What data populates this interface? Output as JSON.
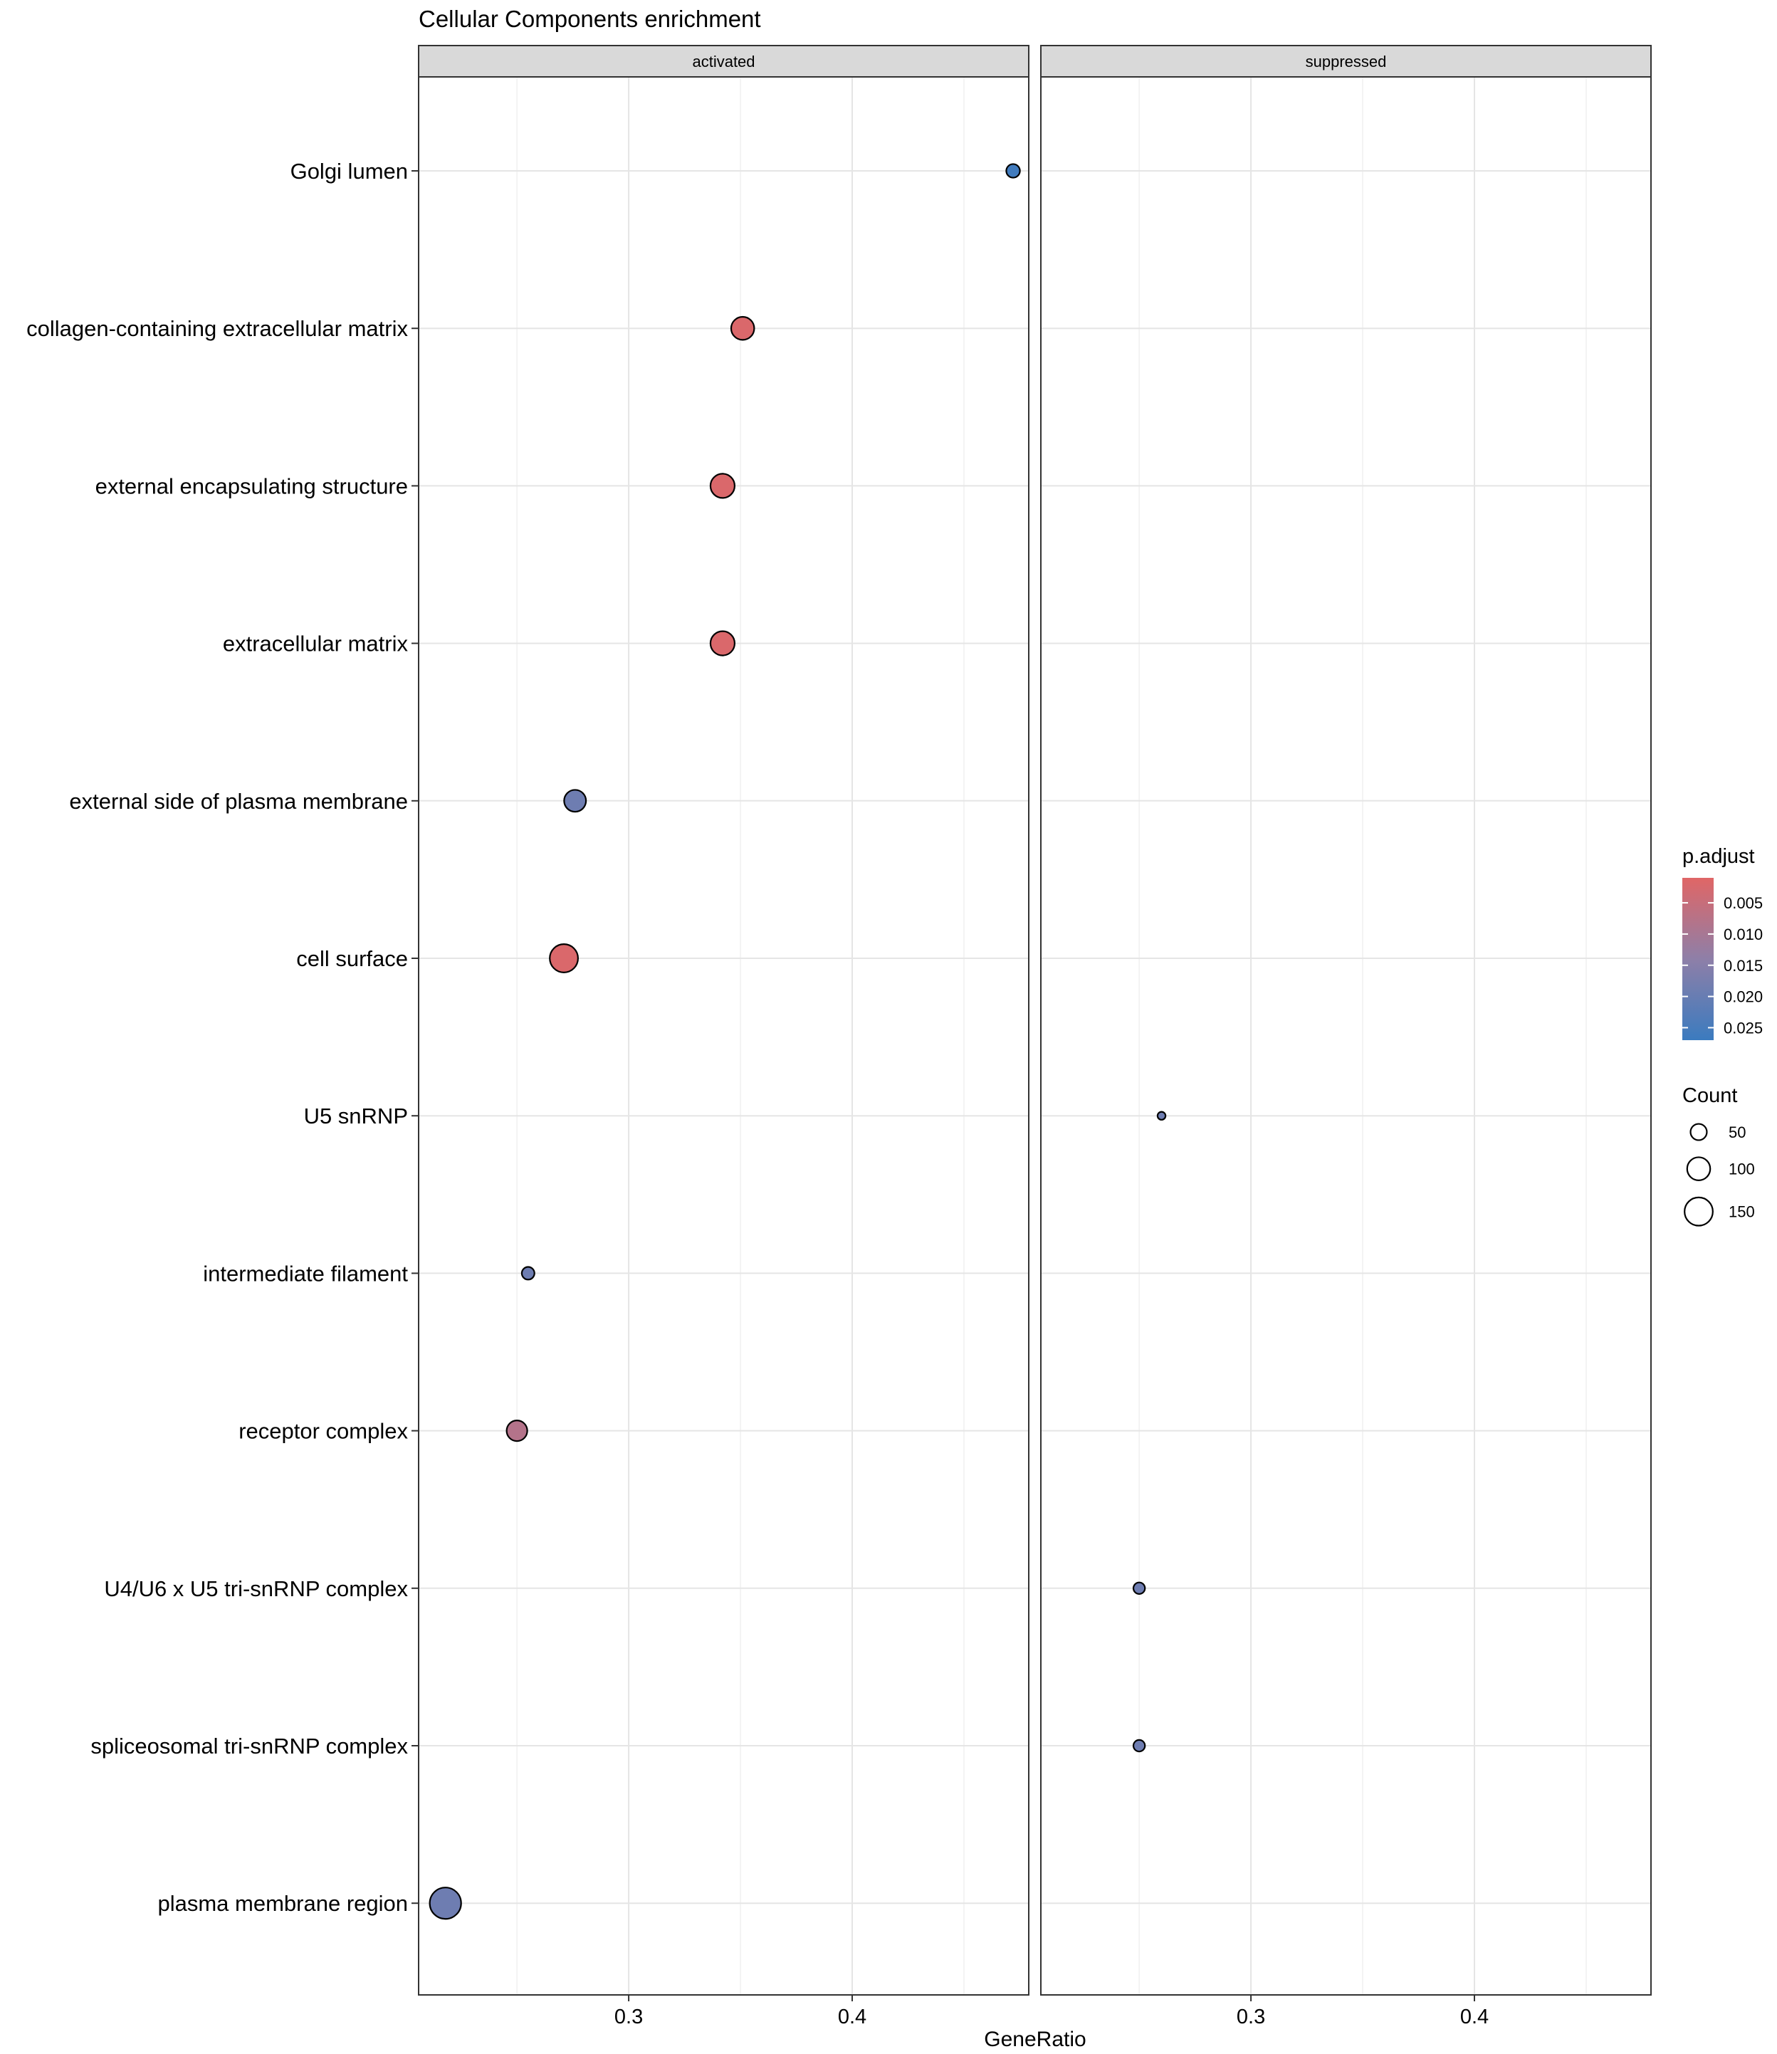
{
  "chart_data": {
    "type": "scatter",
    "title": "Cellular Components enrichment",
    "xlabel": "GeneRatio",
    "ylabel": "",
    "xlim": [
      0.206,
      0.479
    ],
    "x_ticks": [
      0.3,
      0.4
    ],
    "x_tick_labels": [
      "0.3",
      "0.4"
    ],
    "x_minor_ticks": [
      0.25,
      0.35,
      0.45
    ],
    "grid": true,
    "facets": [
      "activated",
      "suppressed"
    ],
    "categories": [
      "Golgi lumen",
      "collagen-containing extracellular matrix",
      "external encapsulating structure",
      "extracellular matrix",
      "external side of plasma membrane",
      "cell surface",
      "U5 snRNP",
      "intermediate filament",
      "receptor complex",
      "U4/U6 x U5 tri-snRNP complex",
      "spliceosomal tri-snRNP complex",
      "plasma membrane region"
    ],
    "points": [
      {
        "facet": "activated",
        "category": "Golgi lumen",
        "gene_ratio": 0.472,
        "count": 35,
        "p_adjust": 0.026
      },
      {
        "facet": "activated",
        "category": "collagen-containing extracellular matrix",
        "gene_ratio": 0.351,
        "count": 100,
        "p_adjust": 0.002
      },
      {
        "facet": "activated",
        "category": "external encapsulating structure",
        "gene_ratio": 0.342,
        "count": 110,
        "p_adjust": 0.002
      },
      {
        "facet": "activated",
        "category": "extracellular matrix",
        "gene_ratio": 0.342,
        "count": 110,
        "p_adjust": 0.002
      },
      {
        "facet": "activated",
        "category": "external side of plasma membrane",
        "gene_ratio": 0.276,
        "count": 90,
        "p_adjust": 0.019
      },
      {
        "facet": "activated",
        "category": "cell surface",
        "gene_ratio": 0.271,
        "count": 150,
        "p_adjust": 0.002
      },
      {
        "facet": "suppressed",
        "category": "U5 snRNP",
        "gene_ratio": 0.26,
        "count": 12,
        "p_adjust": 0.019
      },
      {
        "facet": "activated",
        "category": "intermediate filament",
        "gene_ratio": 0.255,
        "count": 30,
        "p_adjust": 0.019
      },
      {
        "facet": "activated",
        "category": "receptor complex",
        "gene_ratio": 0.25,
        "count": 80,
        "p_adjust": 0.008
      },
      {
        "facet": "suppressed",
        "category": "U4/U6 x U5 tri-snRNP complex",
        "gene_ratio": 0.25,
        "count": 25,
        "p_adjust": 0.019
      },
      {
        "facet": "suppressed",
        "category": "spliceosomal tri-snRNP complex",
        "gene_ratio": 0.25,
        "count": 25,
        "p_adjust": 0.019
      },
      {
        "facet": "activated",
        "category": "plasma membrane region",
        "gene_ratio": 0.218,
        "count": 185,
        "p_adjust": 0.019
      }
    ],
    "color_legend": {
      "title": "p.adjust",
      "range": [
        0.001,
        0.027
      ],
      "low_color": "#E06666",
      "mid_color": "#8E7FA8",
      "high_color": "#3B7BBF",
      "ticks": [
        0.005,
        0.01,
        0.015,
        0.02,
        0.025
      ],
      "tick_labels": [
        "0.005",
        "0.010",
        "0.015",
        "0.020",
        "0.025"
      ]
    },
    "size_legend": {
      "title": "Count",
      "values": [
        50,
        100,
        150
      ],
      "labels": [
        "50",
        "100",
        "150"
      ]
    }
  }
}
